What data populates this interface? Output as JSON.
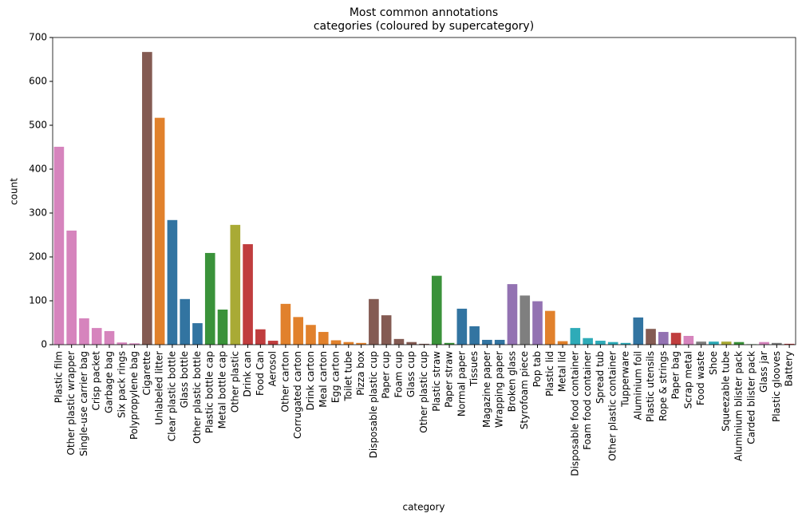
{
  "chart_data": {
    "type": "bar",
    "title": [
      "Most common annotations",
      "categories (coloured by supercategory)"
    ],
    "x_label": "category",
    "y_label": "count",
    "categories": [
      "Plastic film",
      "Other plastic wrapper",
      "Single-use carrier bag",
      "Crisp packet",
      "Garbage bag",
      "Six pack rings",
      "Polypropylene bag",
      "Cigarette",
      "Unlabeled litter",
      "Clear plastic bottle",
      "Glass bottle",
      "Other plastic bottle",
      "Plastic bottle cap",
      "Metal bottle cap",
      "Other plastic",
      "Drink can",
      "Food Can",
      "Aerosol",
      "Other carton",
      "Corrugated carton",
      "Drink carton",
      "Meal carton",
      "Egg carton",
      "Toilet tube",
      "Pizza box",
      "Disposable plastic cup",
      "Paper cup",
      "Foam cup",
      "Glass cup",
      "Other plastic cup",
      "Plastic straw",
      "Paper straw",
      "Normal paper",
      "Tissues",
      "Magazine paper",
      "Wrapping paper",
      "Broken glass",
      "Styrofoam piece",
      "Pop tab",
      "Plastic lid",
      "Metal lid",
      "Disposable food container",
      "Foam food container",
      "Spread tub",
      "Other plastic container",
      "Tupperware",
      "Aluminium foil",
      "Plastic utensils",
      "Rope & strings",
      "Paper bag",
      "Scrap metal",
      "Food waste",
      "Shoe",
      "Squeezable tube",
      "Aluminium blister pack",
      "Carded blister pack",
      "Glass jar",
      "Plastic glooves",
      "Battery"
    ],
    "values": [
      451,
      260,
      60,
      38,
      31,
      5,
      3,
      667,
      517,
      284,
      104,
      49,
      209,
      80,
      273,
      229,
      35,
      9,
      93,
      63,
      45,
      29,
      10,
      6,
      4,
      104,
      67,
      13,
      6,
      2,
      157,
      4,
      82,
      42,
      11,
      11,
      138,
      112,
      99,
      77,
      8,
      38,
      15,
      9,
      6,
      4,
      62,
      36,
      29,
      27,
      20,
      7,
      7,
      7,
      6,
      1,
      6,
      4,
      2
    ],
    "colors": [
      "#d684bd",
      "#d684bd",
      "#d684bd",
      "#d684bd",
      "#d684bd",
      "#d684bd",
      "#d684bd",
      "#845b53",
      "#e1812c",
      "#3274a1",
      "#3274a1",
      "#3274a1",
      "#3a923a",
      "#3a923a",
      "#a9aa35",
      "#c03d3e",
      "#c03d3e",
      "#c03d3e",
      "#e1812c",
      "#e1812c",
      "#e1812c",
      "#e1812c",
      "#e1812c",
      "#e1812c",
      "#e1812c",
      "#845b53",
      "#845b53",
      "#845b53",
      "#845b53",
      "#845b53",
      "#3a923a",
      "#3a923a",
      "#3274a1",
      "#3274a1",
      "#3274a1",
      "#3274a1",
      "#9372b2",
      "#7f7f7f",
      "#9372b2",
      "#e1812c",
      "#e1812c",
      "#2eabb8",
      "#2eabb8",
      "#2eabb8",
      "#2eabb8",
      "#2eabb8",
      "#3274a1",
      "#845b53",
      "#9372b2",
      "#c03d3e",
      "#d684bd",
      "#7f7f7f",
      "#2eabb8",
      "#a9aa35",
      "#3a923a",
      "#3a923a",
      "#d684bd",
      "#7f7f7f",
      "#c03d3e"
    ],
    "ylim": [
      0,
      700
    ],
    "yticks": [
      0,
      100,
      200,
      300,
      400,
      500,
      600,
      700
    ],
    "grid": false
  }
}
